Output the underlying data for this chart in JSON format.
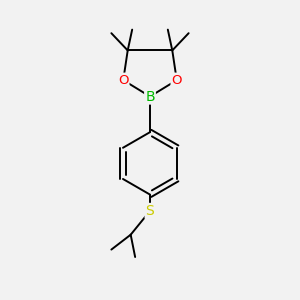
{
  "background_color": "#f2f2f2",
  "bond_color": "#000000",
  "atom_colors": {
    "B": "#00bb00",
    "O": "#ff0000",
    "S": "#cccc00",
    "C": "#000000"
  },
  "font_size_atoms": 8.5,
  "line_width": 1.4,
  "figsize": [
    3.0,
    3.0
  ],
  "dpi": 100
}
